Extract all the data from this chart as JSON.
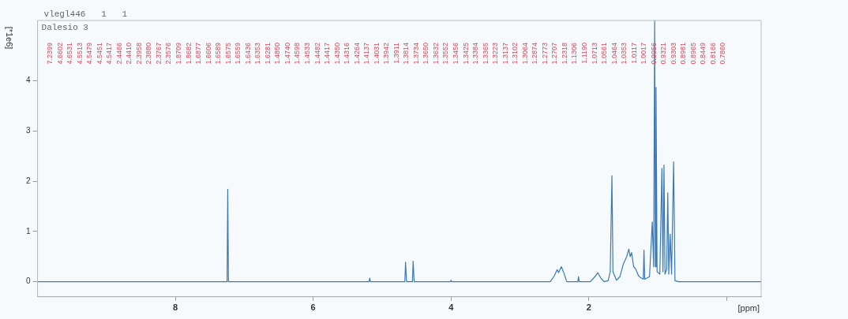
{
  "chart_data": {
    "type": "line",
    "title": "Dalesio 3",
    "subtitle": "vlegl446   1   1",
    "xlabel": "[ppm]",
    "ylabel": "[*1e6]",
    "xlim": [
      10,
      -0.5
    ],
    "xticks": [
      8,
      6,
      4,
      2,
      {
        "value": 0,
        "label": null
      }
    ],
    "ylim": [
      -0.3,
      5.2
    ],
    "yticks": [
      0,
      1,
      2,
      3,
      4
    ],
    "series": [
      {
        "color": "#3a78b8",
        "x": [
          10,
          7.25,
          7.24,
          7.23,
          5.19,
          5.18,
          5.17,
          4.67,
          4.66,
          4.645,
          4.56,
          4.55,
          4.535,
          4.01,
          4.0,
          3.99,
          2.56,
          2.5,
          2.46,
          2.44,
          2.4,
          2.37,
          2.32,
          2.16,
          2.15,
          2.14,
          1.98,
          1.9,
          1.87,
          1.83,
          1.78,
          1.72,
          1.69,
          1.665,
          1.65,
          1.6,
          1.55,
          1.5,
          1.45,
          1.42,
          1.4,
          1.38,
          1.35,
          1.32,
          1.28,
          1.25,
          1.21,
          1.2,
          1.19,
          1.12,
          1.08,
          1.06,
          1.045,
          1.035,
          1.025,
          1.01,
          0.97,
          0.94,
          0.925,
          0.91,
          0.895,
          0.87,
          0.855,
          0.84,
          0.82,
          0.8,
          0.77,
          0.75,
          0.7,
          -0.5
        ],
        "values": [
          0,
          0,
          1.84,
          0,
          0,
          0.07,
          0,
          0,
          0.39,
          0,
          0,
          0.41,
          0,
          0,
          0.03,
          0,
          0,
          0.12,
          0.24,
          0.18,
          0.3,
          0.2,
          0,
          0,
          0.1,
          0,
          0,
          0.12,
          0.18,
          0.08,
          0,
          0.02,
          0.2,
          2.11,
          0.2,
          0.03,
          0.1,
          0.35,
          0.5,
          0.65,
          0.5,
          0.58,
          0.3,
          0.25,
          0.12,
          0.08,
          0.05,
          0.63,
          0.05,
          0.1,
          1.19,
          0.3,
          5.2,
          0.3,
          3.87,
          0.2,
          0.15,
          2.26,
          0.2,
          2.32,
          0.15,
          0.25,
          1.77,
          0.15,
          0.95,
          0.15,
          2.39,
          0.02,
          0,
          0
        ]
      }
    ],
    "marker": "none",
    "annotations": [
      "7.2399",
      "4.6602",
      "4.6531",
      "4.5513",
      "4.5479",
      "4.5451",
      "4.5417",
      "2.4466",
      "2.4410",
      "2.3958",
      "2.3880",
      "2.3767",
      "2.3576",
      "1.8709",
      "1.8682",
      "1.6877",
      "1.6606",
      "1.6589",
      "1.6575",
      "1.6559",
      "1.6436",
      "1.6353",
      "1.6281",
      "1.4850",
      "1.4740",
      "1.4598",
      "1.4533",
      "1.4482",
      "1.4417",
      "1.4350",
      "1.4316",
      "1.4264",
      "1.4137",
      "1.4031",
      "1.3942",
      "1.3911",
      "1.3814",
      "1.3734",
      "1.3650",
      "1.3632",
      "1.3552",
      "1.3456",
      "1.3425",
      "1.3384",
      "1.3365",
      "1.3223",
      "1.3137",
      "1.3102",
      "1.3064",
      "1.2874",
      "1.2773",
      "1.2707",
      "1.2318",
      "1.1306",
      "1.1190",
      "1.0713",
      "1.0561",
      "1.0464",
      "1.0353",
      "1.0117",
      "1.0017",
      "0.9956",
      "0.9321",
      "0.9303",
      "0.8981",
      "0.8965",
      "0.8449",
      "0.8166",
      "0.7860"
    ]
  }
}
